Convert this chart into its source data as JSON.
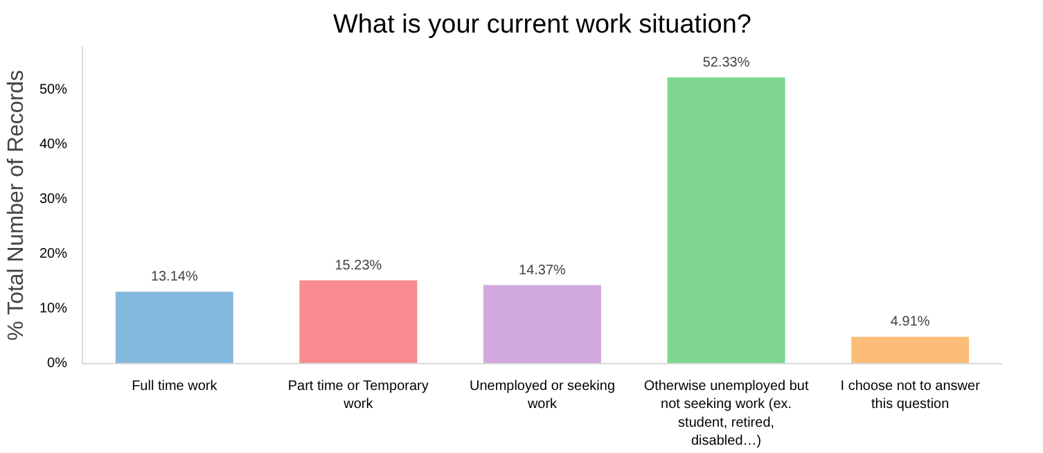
{
  "chart_data": {
    "type": "bar",
    "title": "What is your current work situation?",
    "ylabel": "% Total Number of Records",
    "categories": [
      "Full time work",
      "Part time or Temporary work",
      "Unemployed or seeking work",
      "Otherwise unemployed but not seeking work (ex. student, retired, disabled…)",
      "I choose not to answer this question"
    ],
    "values": [
      13.14,
      15.23,
      14.37,
      52.33,
      4.91
    ],
    "colors": [
      "#85b8de",
      "#f78b8f",
      "#d1a9e0",
      "#7fd68e",
      "#fdbd78"
    ],
    "value_labels": [
      "13.14%",
      "15.23%",
      "14.37%",
      "52.33%",
      "4.91%"
    ],
    "ylim": [
      0,
      58
    ],
    "yticks": [
      {
        "value": 0,
        "label": "0%"
      },
      {
        "value": 10,
        "label": "10%"
      },
      {
        "value": 20,
        "label": "20%"
      },
      {
        "value": 30,
        "label": "30%"
      },
      {
        "value": 40,
        "label": "40%"
      },
      {
        "value": 50,
        "label": "50%"
      }
    ],
    "grid": false
  }
}
